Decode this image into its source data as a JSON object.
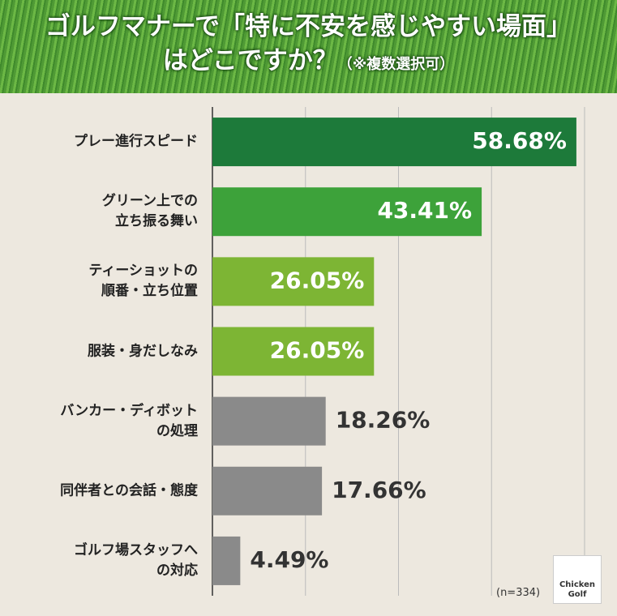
{
  "chart_data": {
    "type": "bar",
    "orientation": "horizontal",
    "title": "ゴルフマナーで「特に不安を感じやすい場面」\nはどこですか？",
    "subtitle": "（※複数選択可）",
    "categories": [
      "プレー進行スピード",
      "グリーン上での\n立ち振る舞い",
      "ティーショットの\n順番・立ち位置",
      "服装・身だしなみ",
      "バンカー・ディボット\nの処理",
      "同伴者との会話・態度",
      "ゴルフ場スタッフへ\nの対応"
    ],
    "values": [
      58.68,
      43.41,
      26.05,
      26.05,
      18.26,
      17.66,
      4.49
    ],
    "value_labels": [
      "58.68%",
      "43.41%",
      "26.05%",
      "26.05%",
      "18.26%",
      "17.66%",
      "4.49%"
    ],
    "colors": [
      "#1d7a3a",
      "#3da23a",
      "#7db534",
      "#7db534",
      "#8a8a8a",
      "#8a8a8a",
      "#8a8a8a"
    ],
    "xlim": [
      0,
      60
    ],
    "xticks": [
      0,
      15,
      30,
      45,
      60
    ],
    "grid": true,
    "note": "(n=334)",
    "logo": "Chicken\nGolf"
  }
}
